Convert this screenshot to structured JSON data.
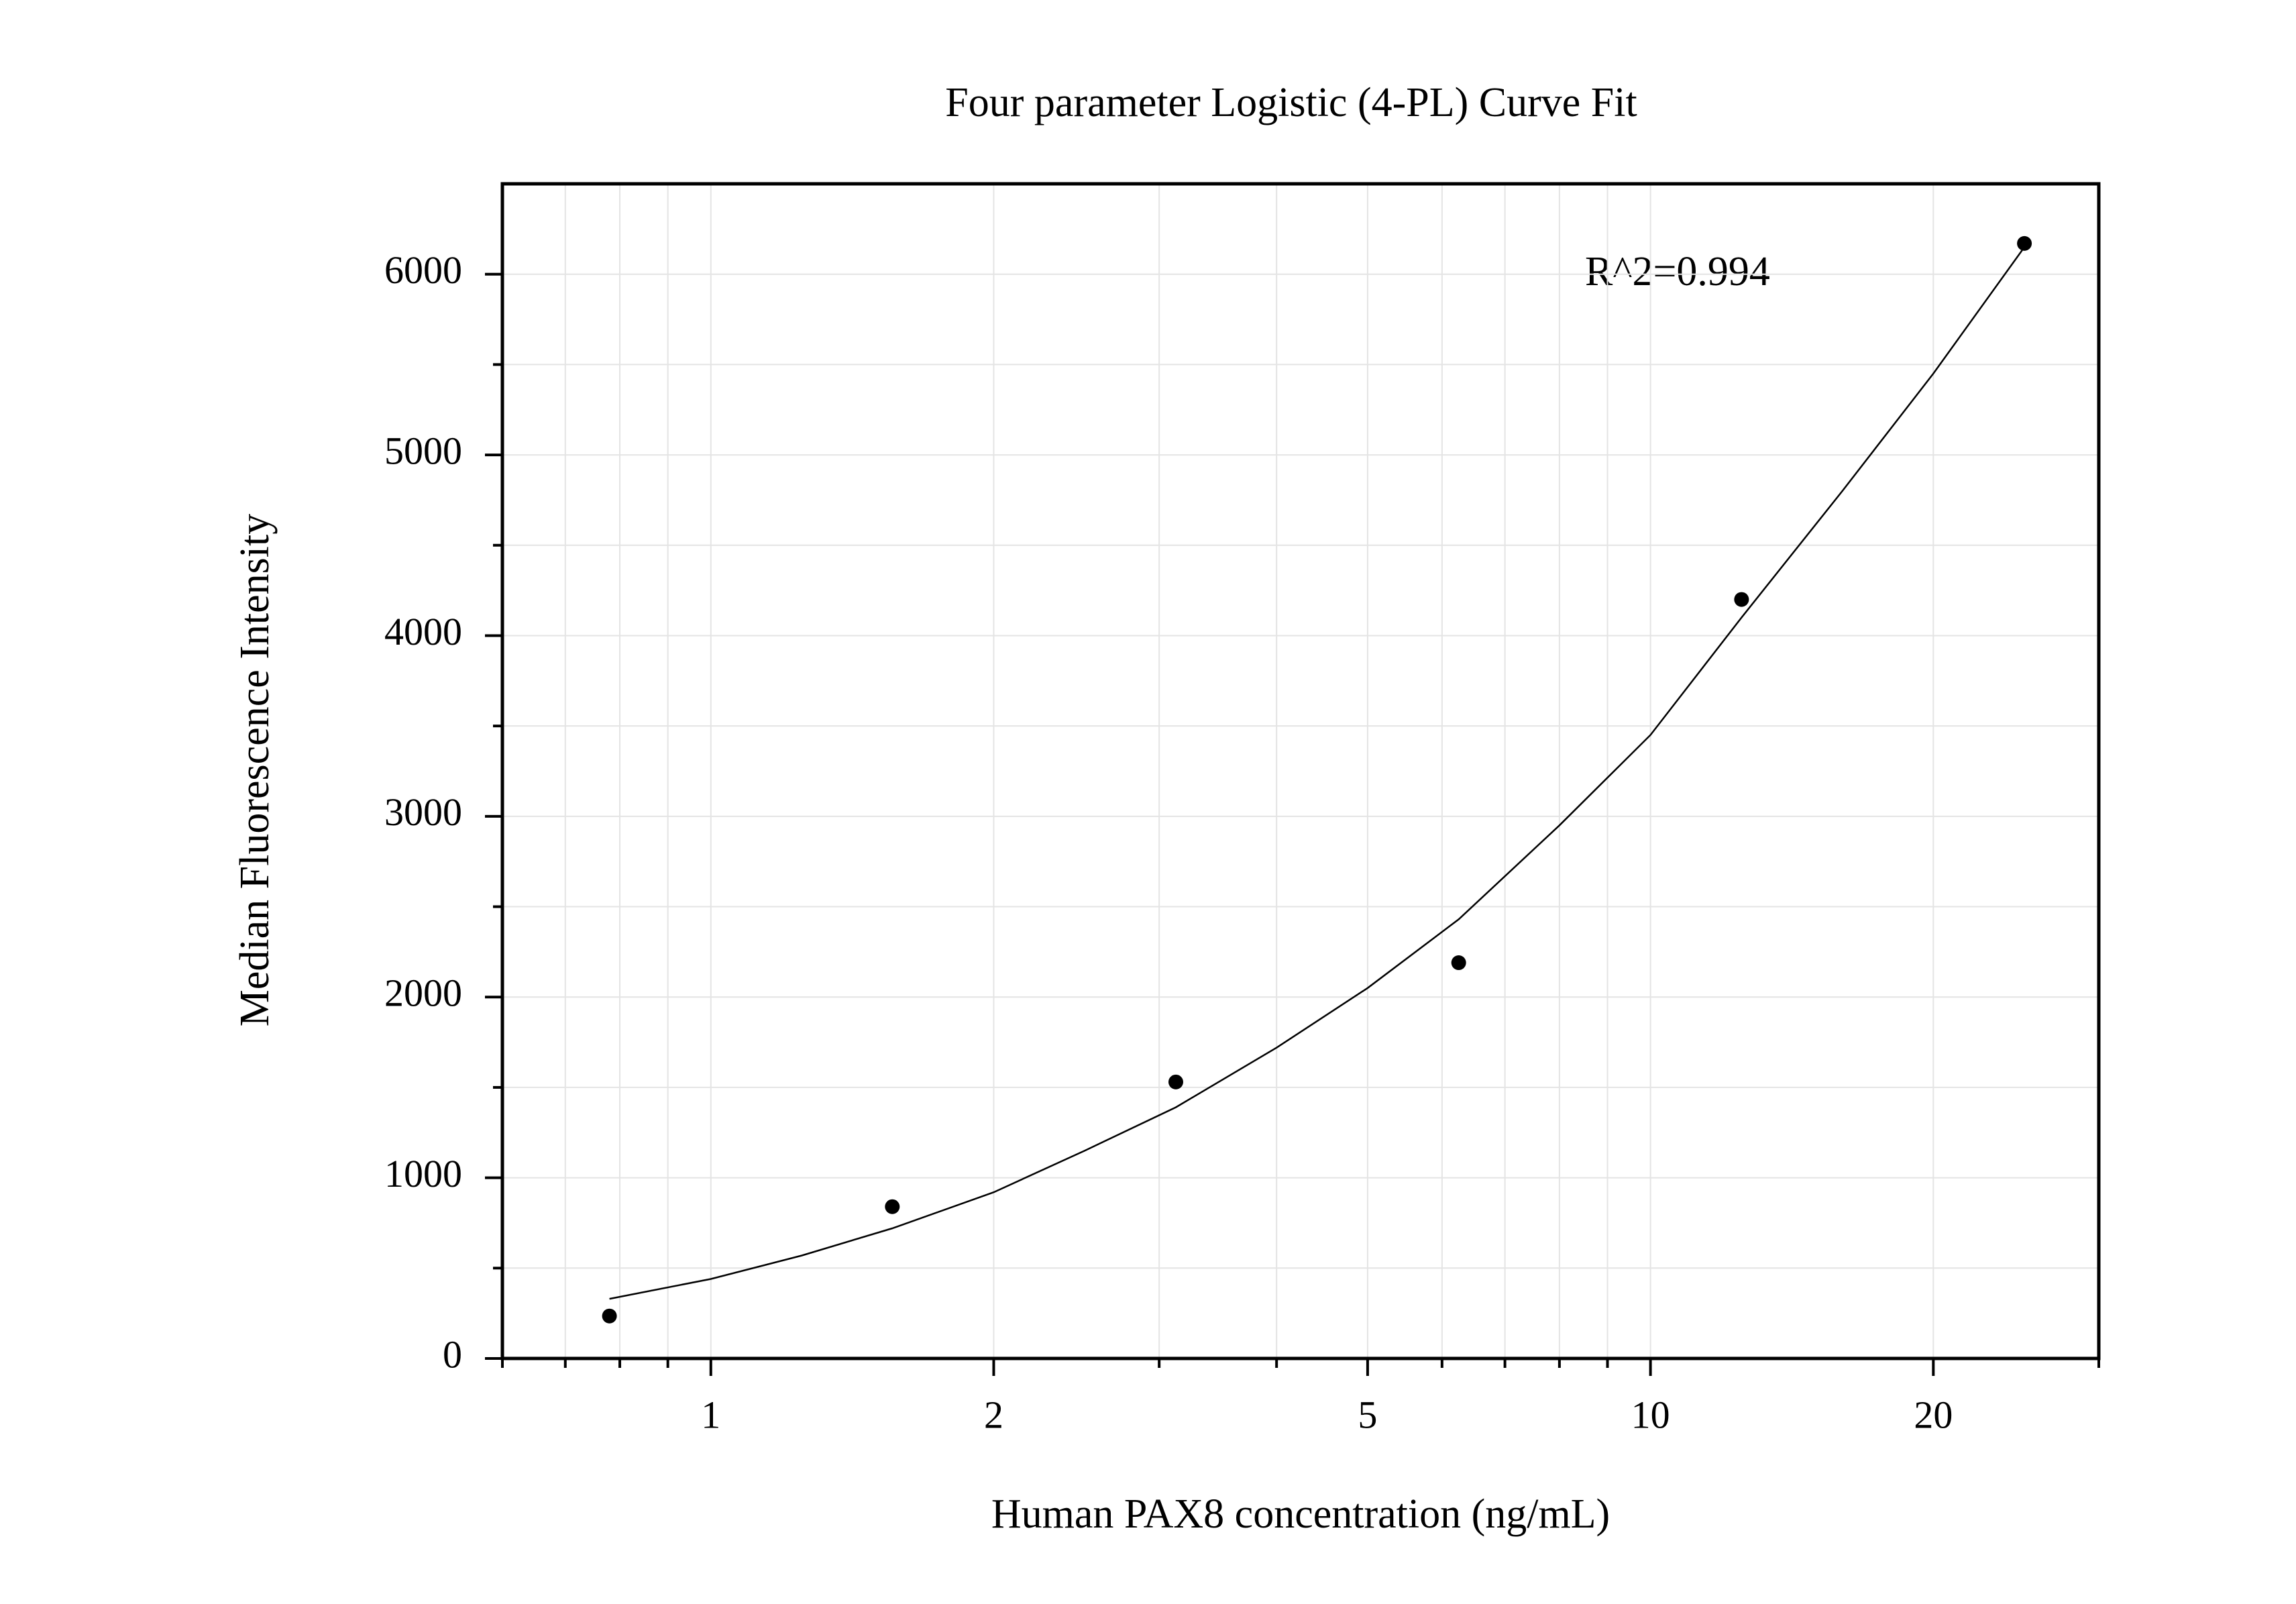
{
  "chart_data": {
    "type": "scatter",
    "title": "Four parameter Logistic (4-PL) Curve Fit",
    "x_label": "Human PAX8 concentration (ng/mL)",
    "y_label": "Median Fluorescence Intensity",
    "annotation": "R^2=0.994",
    "x_scale": "log",
    "xlim": [
      0.6,
      30
    ],
    "xticks": [
      1,
      2,
      5,
      10,
      20
    ],
    "xminorticks": [
      0.6,
      0.7,
      0.8,
      0.9,
      3,
      4,
      6,
      7,
      8,
      9,
      30
    ],
    "ylim": [
      0,
      6500
    ],
    "yticks": [
      0,
      1000,
      2000,
      3000,
      4000,
      5000,
      6000
    ],
    "yminorticks": [
      500,
      1500,
      2500,
      3500,
      4500,
      5500
    ],
    "grid": true,
    "series": [
      {
        "color": "#000000",
        "x": [
          0.78,
          1.56,
          3.125,
          6.25,
          12.5,
          25
        ],
        "values": [
          235,
          840,
          1530,
          2190,
          4200,
          6170
        ]
      }
    ],
    "fit": {
      "type": "line",
      "color": "#000000",
      "x": [
        0.78,
        1,
        1.25,
        1.56,
        2,
        2.5,
        3.125,
        4,
        5,
        6.25,
        8,
        10,
        12.5,
        16,
        20,
        25
      ],
      "values": [
        330,
        440,
        570,
        720,
        920,
        1150,
        1390,
        1720,
        2050,
        2430,
        2950,
        3450,
        4100,
        4800,
        5450,
        6150
      ]
    }
  }
}
